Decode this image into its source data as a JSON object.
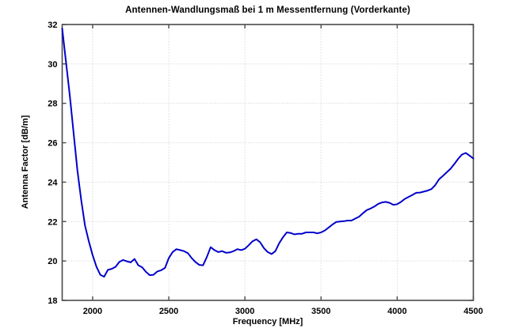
{
  "chart_data": {
    "type": "line",
    "title": "Antennen-Wandlungsmaß bei 1 m Messentfernung (Vorderkante)",
    "xlabel": "Frequency [MHz]",
    "ylabel": "Antenna Factor [dB/m]",
    "xlim": [
      1800,
      4500
    ],
    "ylim": [
      18,
      32
    ],
    "x_ticks": [
      2000,
      2500,
      3000,
      3500,
      4000,
      4500
    ],
    "y_ticks": [
      18,
      20,
      22,
      24,
      26,
      28,
      30,
      32
    ],
    "grid": true,
    "legend_position": "none",
    "series": [
      {
        "name": "Antenna Factor",
        "x": [
          1800,
          1825,
          1850,
          1875,
          1900,
          1925,
          1950,
          1975,
          2000,
          2025,
          2050,
          2075,
          2100,
          2125,
          2150,
          2175,
          2200,
          2225,
          2250,
          2275,
          2300,
          2325,
          2350,
          2375,
          2400,
          2425,
          2450,
          2475,
          2500,
          2525,
          2550,
          2575,
          2600,
          2625,
          2650,
          2675,
          2700,
          2725,
          2750,
          2775,
          2800,
          2825,
          2850,
          2875,
          2900,
          2925,
          2950,
          2975,
          3000,
          3025,
          3050,
          3075,
          3100,
          3125,
          3150,
          3175,
          3200,
          3225,
          3250,
          3275,
          3300,
          3325,
          3350,
          3375,
          3400,
          3425,
          3450,
          3475,
          3500,
          3525,
          3550,
          3575,
          3600,
          3625,
          3650,
          3675,
          3700,
          3725,
          3750,
          3775,
          3800,
          3825,
          3850,
          3875,
          3900,
          3925,
          3950,
          3975,
          4000,
          4025,
          4050,
          4075,
          4100,
          4125,
          4150,
          4175,
          4200,
          4225,
          4250,
          4275,
          4300,
          4325,
          4350,
          4375,
          4400,
          4425,
          4450,
          4475,
          4500
        ],
        "y": [
          31.8,
          30.1,
          28.4,
          26.5,
          24.6,
          23.1,
          21.8,
          21.0,
          20.3,
          19.7,
          19.3,
          19.2,
          19.55,
          19.6,
          19.7,
          19.95,
          20.05,
          19.98,
          19.93,
          20.1,
          19.78,
          19.68,
          19.45,
          19.28,
          19.3,
          19.47,
          19.53,
          19.65,
          20.15,
          20.45,
          20.6,
          20.55,
          20.5,
          20.4,
          20.15,
          19.95,
          19.8,
          19.78,
          20.2,
          20.7,
          20.55,
          20.45,
          20.5,
          20.42,
          20.43,
          20.5,
          20.6,
          20.55,
          20.62,
          20.8,
          21.0,
          21.1,
          20.95,
          20.65,
          20.45,
          20.35,
          20.5,
          20.9,
          21.2,
          21.45,
          21.42,
          21.35,
          21.38,
          21.38,
          21.45,
          21.45,
          21.45,
          21.4,
          21.45,
          21.55,
          21.7,
          21.85,
          21.98,
          22.0,
          22.02,
          22.05,
          22.05,
          22.15,
          22.25,
          22.42,
          22.58,
          22.66,
          22.76,
          22.9,
          22.97,
          23.0,
          22.95,
          22.85,
          22.88,
          23.0,
          23.15,
          23.25,
          23.35,
          23.46,
          23.47,
          23.52,
          23.57,
          23.65,
          23.85,
          24.15,
          24.32,
          24.5,
          24.68,
          24.92,
          25.18,
          25.4,
          25.48,
          25.35,
          25.2
        ]
      }
    ],
    "colors": {
      "line": "#0000cc",
      "grid": "#e2e2e2",
      "frame": "#4a4a4a",
      "background": "#ffffff",
      "text": "#000000"
    }
  }
}
